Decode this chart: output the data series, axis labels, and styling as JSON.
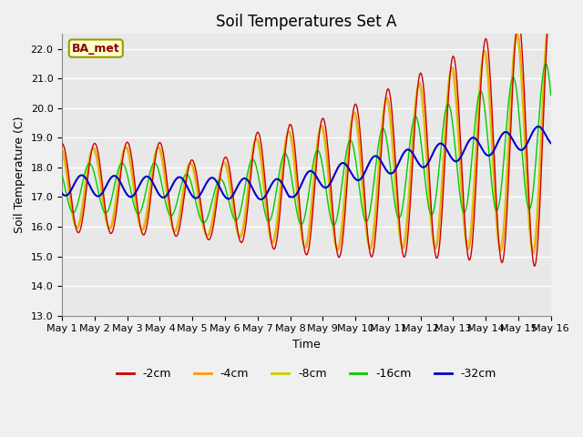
{
  "title": "Soil Temperatures Set A",
  "xlabel": "Time",
  "ylabel": "Soil Temperature (C)",
  "label_text": "BA_met",
  "ylim": [
    13.0,
    22.5
  ],
  "yticks": [
    13.0,
    14.0,
    15.0,
    16.0,
    17.0,
    18.0,
    19.0,
    20.0,
    21.0,
    22.0
  ],
  "x_labels": [
    "May 1",
    "May 2",
    "May 3",
    "May 4",
    "May 5",
    "May 6",
    "May 7",
    "May 8",
    "May 9",
    "May 10",
    "May 11",
    "May 12",
    "May 13",
    "May 14",
    "May 15",
    "May 16"
  ],
  "colors": {
    "-2cm": "#cc0000",
    "-4cm": "#ff9900",
    "-8cm": "#cccc00",
    "-16cm": "#00cc00",
    "-32cm": "#0000cc"
  },
  "legend_labels": [
    "-2cm",
    "-4cm",
    "-8cm",
    "-16cm",
    "-32cm"
  ],
  "plot_bg_color": "#e8e8e8",
  "grid_color": "#ffffff",
  "title_fontsize": 12,
  "axis_fontsize": 9,
  "tick_fontsize": 8
}
